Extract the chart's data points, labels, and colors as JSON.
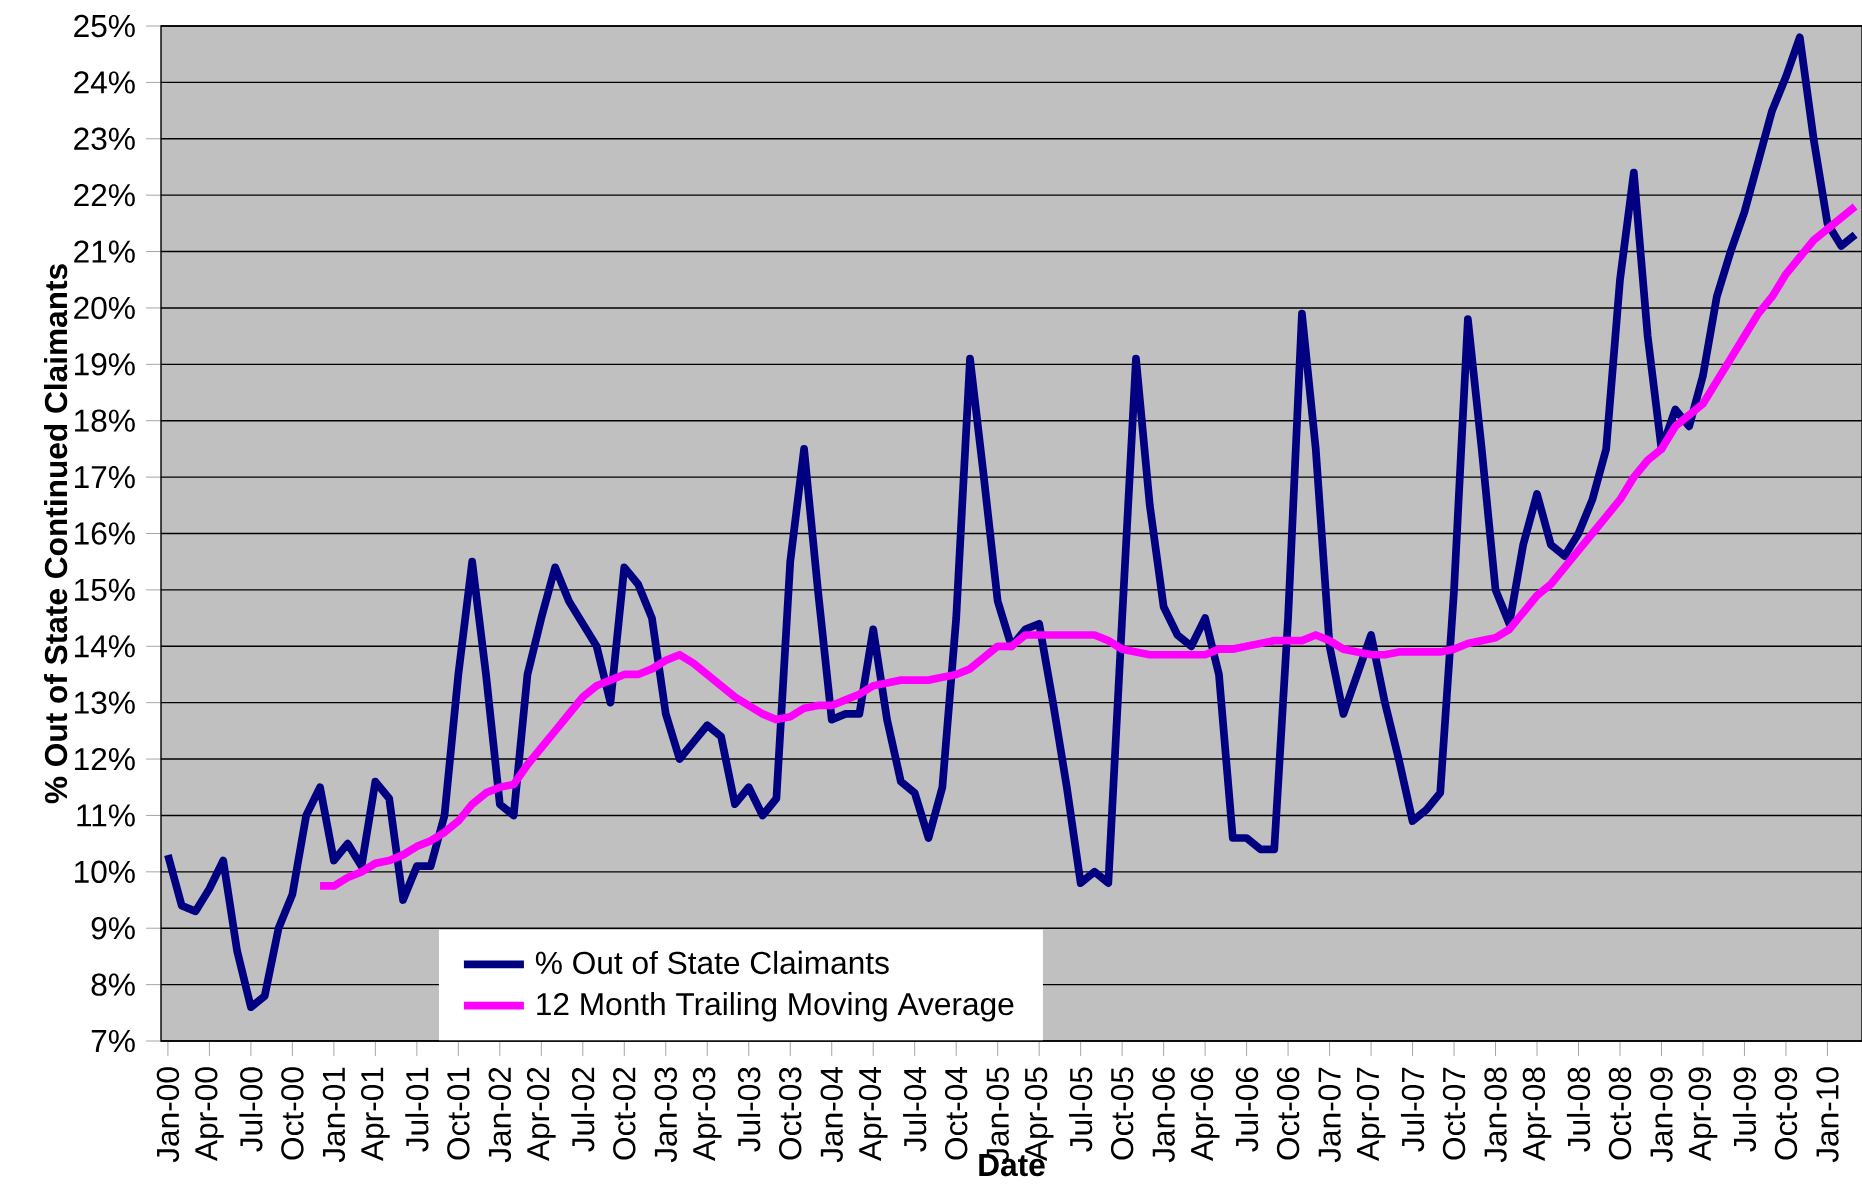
{
  "chart_data": {
    "type": "line",
    "xlabel": "Date",
    "ylabel": "% Out of State Continued Claimants",
    "categories": [
      "Jan-00",
      null,
      null,
      "Apr-00",
      null,
      null,
      "Jul-00",
      null,
      null,
      "Oct-00",
      null,
      null,
      "Jan-01",
      null,
      null,
      "Apr-01",
      null,
      null,
      "Jul-01",
      null,
      null,
      "Oct-01",
      null,
      null,
      "Jan-02",
      null,
      null,
      "Apr-02",
      null,
      null,
      "Jul-02",
      null,
      null,
      "Oct-02",
      null,
      null,
      "Jan-03",
      null,
      null,
      "Apr-03",
      null,
      null,
      "Jul-03",
      null,
      null,
      "Oct-03",
      null,
      null,
      "Jan-04",
      null,
      null,
      "Apr-04",
      null,
      null,
      "Jul-04",
      null,
      null,
      "Oct-04",
      null,
      null,
      "Jan-05",
      null,
      null,
      "Apr-05",
      null,
      null,
      "Jul-05",
      null,
      null,
      "Oct-05",
      null,
      null,
      "Jan-06",
      null,
      null,
      "Apr-06",
      null,
      null,
      "Jul-06",
      null,
      null,
      "Oct-06",
      null,
      null,
      "Jan-07",
      null,
      null,
      "Apr-07",
      null,
      null,
      "Jul-07",
      null,
      null,
      "Oct-07",
      null,
      null,
      "Jan-08",
      null,
      null,
      "Apr-08",
      null,
      null,
      "Jul-08",
      null,
      null,
      "Oct-08",
      null,
      null,
      "Jan-09",
      null,
      null,
      "Apr-09",
      null,
      null,
      "Jul-09",
      null,
      null,
      "Oct-09",
      null,
      null,
      "Jan-10",
      null,
      null
    ],
    "series": [
      {
        "name": "% Out of State Claimants",
        "color": "#000080",
        "values": [
          10.3,
          9.4,
          9.3,
          9.7,
          10.2,
          8.6,
          7.6,
          7.8,
          9.0,
          9.6,
          11.0,
          11.5,
          10.2,
          10.5,
          10.1,
          11.6,
          11.3,
          9.5,
          10.1,
          10.1,
          11.0,
          13.5,
          15.5,
          13.5,
          11.2,
          11.0,
          13.5,
          14.5,
          15.4,
          14.8,
          14.4,
          14.0,
          13.0,
          15.4,
          15.1,
          14.5,
          12.8,
          12.0,
          12.3,
          12.6,
          12.4,
          11.2,
          11.5,
          11.0,
          11.3,
          15.5,
          17.5,
          15.0,
          12.7,
          12.8,
          12.8,
          14.3,
          12.7,
          11.6,
          11.4,
          10.6,
          11.5,
          14.5,
          19.1,
          17.0,
          14.8,
          14.0,
          14.3,
          14.4,
          13.0,
          11.5,
          9.8,
          10.0,
          9.8,
          14.5,
          19.1,
          16.5,
          14.7,
          14.2,
          14.0,
          14.5,
          13.5,
          10.6,
          10.6,
          10.4,
          10.4,
          14.5,
          19.9,
          17.5,
          14.0,
          12.8,
          13.5,
          14.2,
          13.0,
          12.0,
          10.9,
          11.1,
          11.4,
          15.0,
          19.8,
          17.5,
          15.0,
          14.4,
          15.8,
          16.7,
          15.8,
          15.6,
          16.0,
          16.6,
          17.5,
          20.5,
          22.4,
          19.5,
          17.5,
          18.2,
          17.9,
          18.8,
          20.2,
          21.0,
          21.7,
          22.6,
          23.5,
          24.1,
          24.8,
          23.0,
          21.5,
          21.1,
          21.3
        ]
      },
      {
        "name": "12 Month Trailing Moving Average",
        "color": "#ff00ff",
        "values": [
          null,
          null,
          null,
          null,
          null,
          null,
          null,
          null,
          null,
          null,
          null,
          9.75,
          9.75,
          9.9,
          10.0,
          10.15,
          10.2,
          10.3,
          10.45,
          10.55,
          10.7,
          10.9,
          11.2,
          11.4,
          11.5,
          11.55,
          11.9,
          12.2,
          12.5,
          12.8,
          13.1,
          13.3,
          13.4,
          13.5,
          13.5,
          13.6,
          13.75,
          13.85,
          13.7,
          13.5,
          13.3,
          13.1,
          12.95,
          12.8,
          12.7,
          12.75,
          12.9,
          12.95,
          12.95,
          13.05,
          13.15,
          13.3,
          13.35,
          13.4,
          13.4,
          13.4,
          13.45,
          13.5,
          13.6,
          13.8,
          14.0,
          14.0,
          14.2,
          14.2,
          14.2,
          14.2,
          14.2,
          14.2,
          14.1,
          13.95,
          13.9,
          13.85,
          13.85,
          13.85,
          13.85,
          13.85,
          13.95,
          13.95,
          14.0,
          14.05,
          14.1,
          14.1,
          14.1,
          14.2,
          14.1,
          13.95,
          13.9,
          13.85,
          13.85,
          13.9,
          13.9,
          13.9,
          13.9,
          13.95,
          14.05,
          14.1,
          14.15,
          14.3,
          14.6,
          14.9,
          15.1,
          15.4,
          15.7,
          16.0,
          16.3,
          16.6,
          17.0,
          17.3,
          17.5,
          17.9,
          18.1,
          18.3,
          18.7,
          19.1,
          19.5,
          19.9,
          20.2,
          20.6,
          20.9,
          21.2,
          21.4,
          21.6,
          21.8
        ]
      }
    ],
    "ylim": [
      7,
      25
    ],
    "yticks": [
      {
        "value": 7,
        "label": "7%"
      },
      {
        "value": 8,
        "label": "8%"
      },
      {
        "value": 9,
        "label": "9%"
      },
      {
        "value": 10,
        "label": "10%"
      },
      {
        "value": 11,
        "label": "11%"
      },
      {
        "value": 12,
        "label": "12%"
      },
      {
        "value": 13,
        "label": "13%"
      },
      {
        "value": 14,
        "label": "14%"
      },
      {
        "value": 15,
        "label": "15%"
      },
      {
        "value": 16,
        "label": "16%"
      },
      {
        "value": 17,
        "label": "17%"
      },
      {
        "value": 18,
        "label": "18%"
      },
      {
        "value": 19,
        "label": "19%"
      },
      {
        "value": 20,
        "label": "20%"
      },
      {
        "value": 21,
        "label": "21%"
      },
      {
        "value": 22,
        "label": "22%"
      },
      {
        "value": 23,
        "label": "23%"
      },
      {
        "value": 24,
        "label": "24%"
      },
      {
        "value": 25,
        "label": "25%"
      }
    ],
    "grid": "y",
    "legend": "bottom left",
    "marker": "none",
    "line_style": "solid"
  }
}
